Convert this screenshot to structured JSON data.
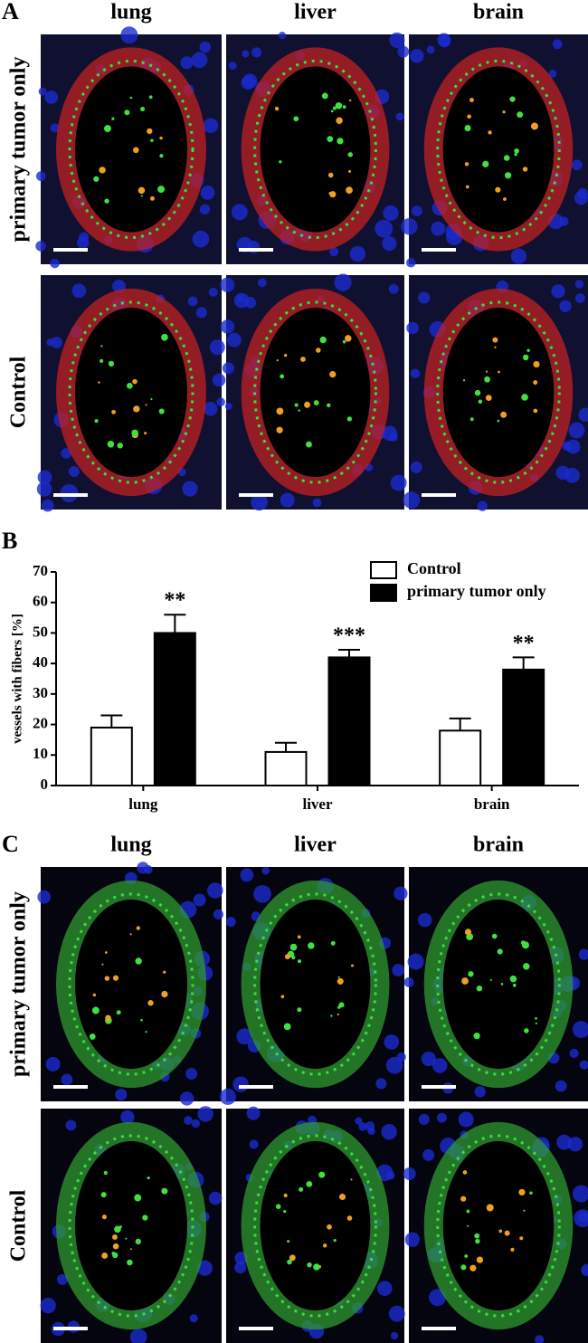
{
  "panel_a": {
    "letter": "A",
    "columns": [
      "lung",
      "liver",
      "brain"
    ],
    "rows": [
      "primary tumor only",
      "Control"
    ]
  },
  "chart_data": {
    "type": "bar",
    "panel_label": "B",
    "categories": [
      "lung",
      "liver",
      "brain"
    ],
    "series": [
      {
        "name": "Control",
        "color": "#ffffff",
        "values": [
          19,
          11,
          18
        ],
        "errors": [
          4,
          3,
          4
        ]
      },
      {
        "name": "primary tumor only",
        "color": "#000000",
        "values": [
          50,
          42,
          38
        ],
        "errors": [
          6,
          2.5,
          4
        ]
      }
    ],
    "annotations": [
      "**",
      "***",
      "**"
    ],
    "ylabel": "vessels with fibers [%]",
    "ylim": [
      0,
      70
    ],
    "yticks": [
      0,
      10,
      20,
      30,
      40,
      50,
      60,
      70
    ],
    "legend": "upper right"
  },
  "panel_c": {
    "letter": "C",
    "columns": [
      "lung",
      "liver",
      "brain"
    ],
    "rows": [
      "primary tumor only",
      "Control"
    ]
  }
}
